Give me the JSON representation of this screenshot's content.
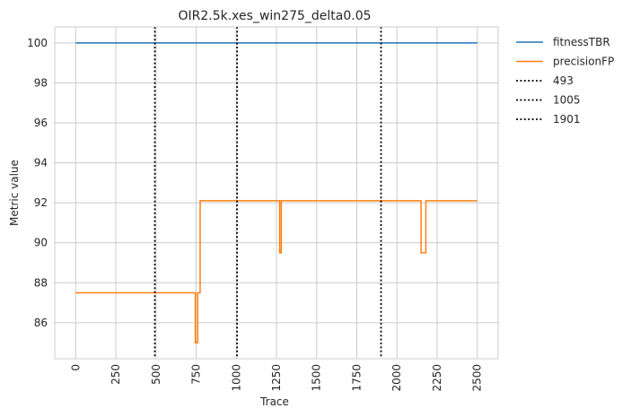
{
  "chart_data": {
    "type": "line",
    "title": "OIR2.5k.xes_win275_delta0.05",
    "xlabel": "Trace",
    "ylabel": "Metric value",
    "xlim": [
      -130,
      2630
    ],
    "ylim": [
      84.2,
      100.8
    ],
    "xticks": [
      0,
      250,
      500,
      750,
      1000,
      1250,
      1500,
      1750,
      2000,
      2250,
      2500
    ],
    "xtick_labels": [
      "0",
      "250",
      "500",
      "750",
      "1000",
      "1250",
      "1500",
      "1750",
      "2000",
      "2250",
      "2500"
    ],
    "yticks": [
      86,
      88,
      90,
      92,
      94,
      96,
      98,
      100
    ],
    "ytick_labels": [
      "86",
      "88",
      "90",
      "92",
      "94",
      "96",
      "98",
      "100"
    ],
    "grid": true,
    "legend_position": "outside upper right",
    "series": [
      {
        "name": "fitnessTBR",
        "color": "#1f77b4",
        "style": "solid",
        "x": [
          0,
          2500
        ],
        "y": [
          100,
          100
        ]
      },
      {
        "name": "precisionFP",
        "color": "#ff7f0e",
        "style": "solid",
        "step": true,
        "x": [
          0,
          745,
          760,
          775,
          1270,
          1280,
          2150,
          2180,
          2500
        ],
        "y": [
          87.5,
          85.0,
          87.5,
          92.1,
          89.5,
          92.1,
          89.5,
          92.1,
          92.1
        ]
      }
    ],
    "vlines": [
      {
        "name": "493",
        "x": 493,
        "color": "#000000",
        "style": "dotted"
      },
      {
        "name": "1005",
        "x": 1005,
        "color": "#000000",
        "style": "dotted"
      },
      {
        "name": "1901",
        "x": 1901,
        "color": "#000000",
        "style": "dotted"
      }
    ]
  }
}
